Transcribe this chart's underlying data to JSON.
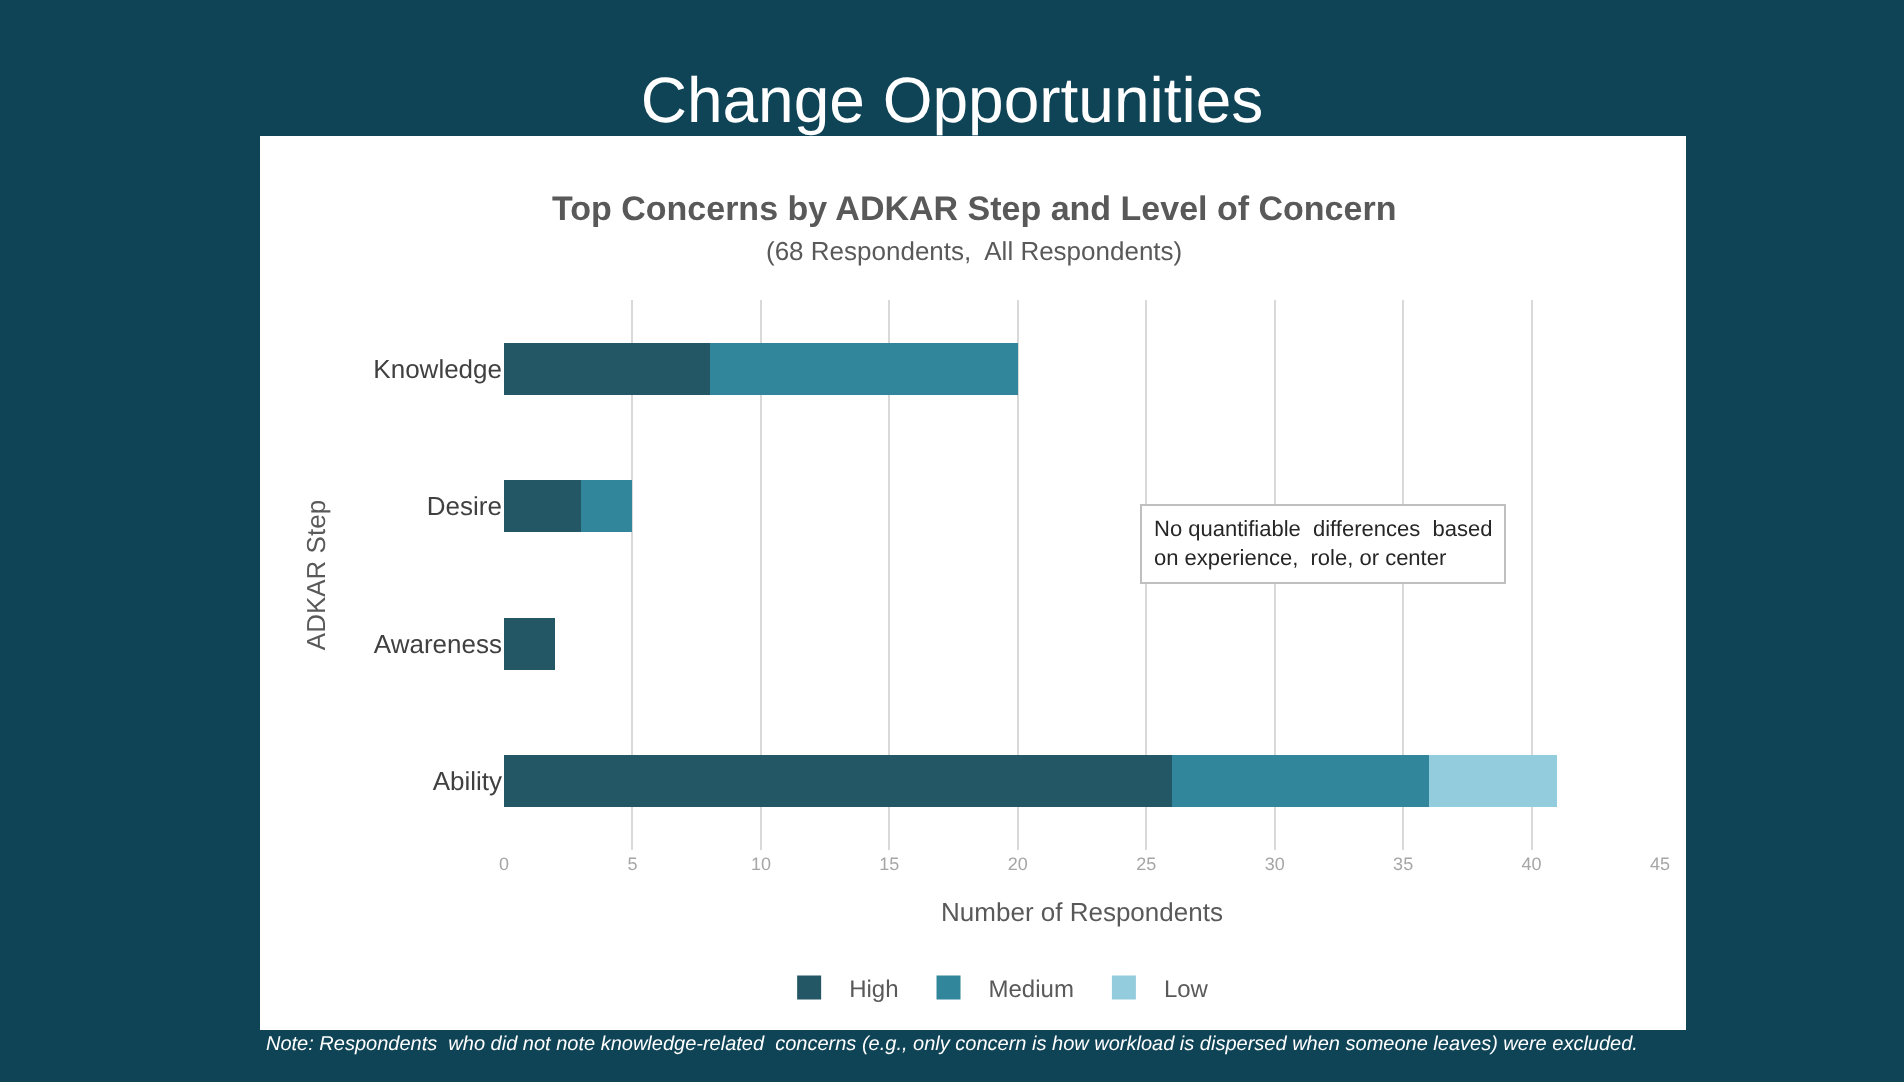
{
  "chart_data": {
    "type": "bar",
    "orientation": "horizontal",
    "stacked": true,
    "title": "Change Opportunities",
    "subtitle": "Top Concerns by ADKAR Step and Level of Concern",
    "annotations": [
      "(68 Respondents,  All Respondents)",
      "No quantifiable  differences  based\non experience,  role, or center",
      "Note: Respondents  who did not note knowledge-related  concerns (e.g., only concern is how workload is dispersed when someone leaves) were excluded."
    ],
    "xlabel": "Number of Respondents",
    "ylabel": "ADKAR Step",
    "categories": [
      "Knowledge",
      "Desire",
      "Awareness",
      "Ability"
    ],
    "series": [
      {
        "name": "High",
        "color": "#245766",
        "values": [
          8,
          3,
          2,
          26
        ]
      },
      {
        "name": "Medium",
        "color": "#31869b",
        "values": [
          12,
          2,
          0,
          10
        ]
      },
      {
        "name": "Low",
        "color": "#93cddd",
        "values": [
          0,
          0,
          0,
          5
        ]
      }
    ],
    "xlim": [
      0,
      45
    ],
    "xticks": [
      0,
      5,
      10,
      15,
      20,
      25,
      30,
      35,
      40,
      45
    ],
    "grid": "x",
    "legend": "bottom"
  }
}
